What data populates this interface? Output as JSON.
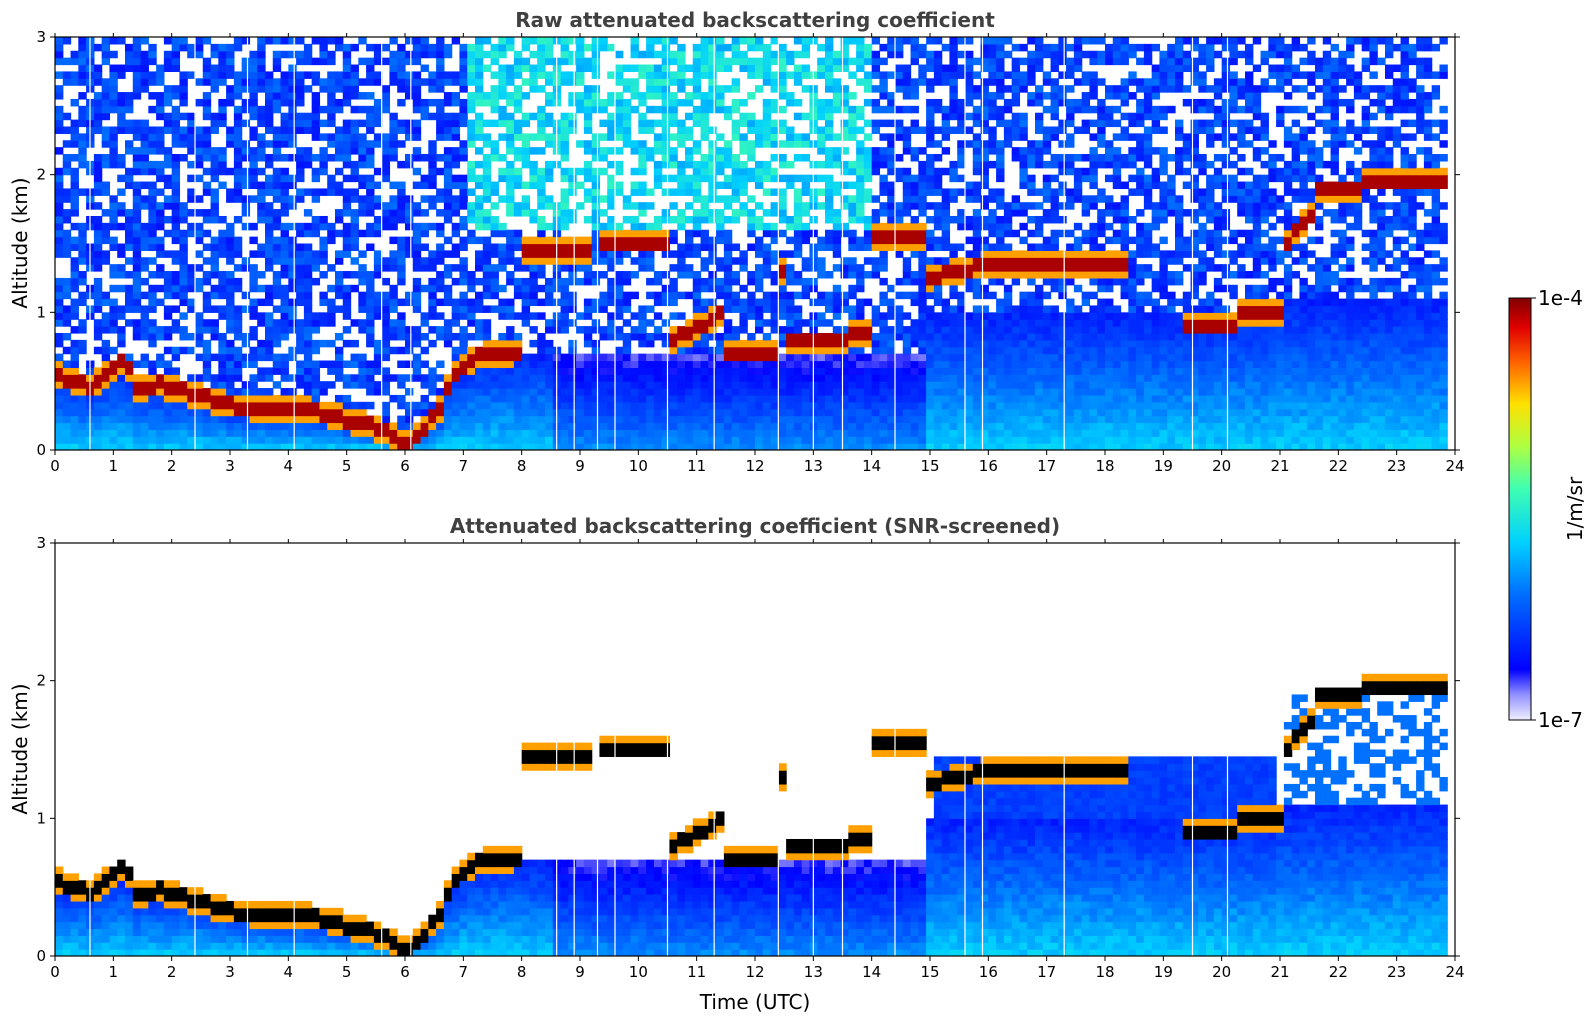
{
  "chart_data": [
    {
      "type": "heatmap",
      "title": "Raw attenuated backscattering coefficient",
      "xlabel": "",
      "ylabel": "Altitude (km)",
      "xlim": [
        0,
        24
      ],
      "ylim": [
        0,
        3
      ],
      "xticks": [
        "0",
        "1",
        "2",
        "3",
        "4",
        "5",
        "6",
        "7",
        "8",
        "9",
        "10",
        "11",
        "12",
        "13",
        "14",
        "15",
        "16",
        "17",
        "18",
        "19",
        "20",
        "21",
        "22",
        "23",
        "24"
      ],
      "yticks": [
        "0",
        "1",
        "2",
        "3"
      ],
      "screened": false
    },
    {
      "type": "heatmap",
      "title": "Attenuated backscattering coefficient (SNR-screened)",
      "xlabel": "Time (UTC)",
      "ylabel": "Altitude (km)",
      "xlim": [
        0,
        24
      ],
      "ylim": [
        0,
        3
      ],
      "xticks": [
        "0",
        "1",
        "2",
        "3",
        "4",
        "5",
        "6",
        "7",
        "8",
        "9",
        "10",
        "11",
        "12",
        "13",
        "14",
        "15",
        "16",
        "17",
        "18",
        "19",
        "20",
        "21",
        "22",
        "23",
        "24"
      ],
      "yticks": [
        "0",
        "1",
        "2",
        "3"
      ],
      "screened": true
    }
  ],
  "colorbar": {
    "max_label": "1e-4",
    "min_label": "1e-7",
    "unit_label": "1/m/sr",
    "scale": "log",
    "colormap": "jet"
  },
  "cloud_layer": {
    "description_points_hours_km": [
      [
        0.0,
        0.55
      ],
      [
        0.3,
        0.5
      ],
      [
        0.6,
        0.47
      ],
      [
        0.9,
        0.55
      ],
      [
        1.2,
        0.65
      ],
      [
        1.4,
        0.45
      ],
      [
        1.8,
        0.48
      ],
      [
        2.2,
        0.43
      ],
      [
        2.6,
        0.38
      ],
      [
        3.0,
        0.33
      ],
      [
        3.4,
        0.31
      ],
      [
        3.8,
        0.31
      ],
      [
        4.2,
        0.3
      ],
      [
        4.6,
        0.27
      ],
      [
        5.0,
        0.22
      ],
      [
        5.4,
        0.18
      ],
      [
        5.8,
        0.1
      ],
      [
        6.0,
        0.05
      ],
      [
        6.3,
        0.15
      ],
      [
        6.6,
        0.3
      ],
      [
        6.8,
        0.55
      ],
      [
        7.2,
        0.68
      ],
      [
        7.6,
        0.7
      ],
      [
        8.0,
        0.72
      ]
    ],
    "elevated": [
      {
        "x0": 8.0,
        "x1": 9.2,
        "alt": 1.45
      },
      {
        "x0": 9.4,
        "x1": 10.5,
        "alt": 1.52
      },
      {
        "x0": 10.5,
        "x1": 11.5,
        "alt": 0.78,
        "alt_end": 1.0
      },
      {
        "x0": 11.5,
        "x1": 12.4,
        "alt": 0.72
      },
      {
        "x0": 12.4,
        "x1": 12.6,
        "alt": 1.3
      },
      {
        "x0": 12.6,
        "x1": 13.6,
        "alt": 0.78
      },
      {
        "x0": 13.6,
        "x1": 14.0,
        "alt": 0.85
      },
      {
        "x0": 13.9,
        "x1": 14.9,
        "alt": 1.55
      },
      {
        "x0": 14.9,
        "x1": 16.0,
        "alt": 1.25,
        "alt_end": 1.35
      },
      {
        "x0": 16.0,
        "x1": 18.4,
        "alt": 1.35
      },
      {
        "x0": 19.4,
        "x1": 20.3,
        "alt": 0.92
      },
      {
        "x0": 20.3,
        "x1": 21.1,
        "alt": 1.0
      },
      {
        "x0": 21.0,
        "x1": 21.6,
        "alt": 1.45,
        "alt_end": 1.75
      },
      {
        "x0": 21.6,
        "x1": 22.4,
        "alt": 1.88
      },
      {
        "x0": 22.4,
        "x1": 23.8,
        "alt": 1.97
      }
    ]
  }
}
